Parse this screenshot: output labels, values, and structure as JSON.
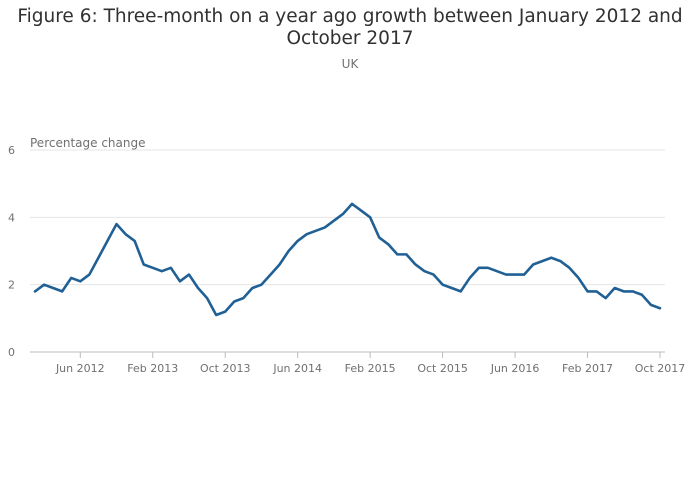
{
  "chart_data": {
    "type": "line",
    "title": "Figure 6: Three-month on a year ago growth between January 2012 and October 2017",
    "subtitle": "UK",
    "ylabel": "Percentage change",
    "xlabel": "",
    "ylim": [
      0,
      6
    ],
    "yticks": [
      "0",
      "2",
      "4",
      "6"
    ],
    "xticks": [
      {
        "label": "Jun 2012",
        "index": 5
      },
      {
        "label": "Feb 2013",
        "index": 13
      },
      {
        "label": "Oct 2013",
        "index": 21
      },
      {
        "label": "Jun 2014",
        "index": 29
      },
      {
        "label": "Feb 2015",
        "index": 37
      },
      {
        "label": "Oct 2015",
        "index": 45
      },
      {
        "label": "Jun 2016",
        "index": 53
      },
      {
        "label": "Feb 2017",
        "index": 61
      },
      {
        "label": "Oct 2017",
        "index": 69
      }
    ],
    "grid": true,
    "line_color": "#206095",
    "series": [
      {
        "values": [
          1.8,
          2.0,
          1.9,
          1.8,
          2.2,
          2.1,
          2.3,
          2.8,
          3.3,
          3.8,
          3.5,
          3.3,
          2.6,
          2.5,
          2.4,
          2.5,
          2.1,
          2.3,
          1.9,
          1.6,
          1.1,
          1.2,
          1.5,
          1.6,
          1.9,
          2.0,
          2.3,
          2.6,
          3.0,
          3.3,
          3.5,
          3.6,
          3.7,
          3.9,
          4.1,
          4.4,
          4.2,
          4.0,
          3.4,
          3.2,
          2.9,
          2.9,
          2.6,
          2.4,
          2.3,
          2.0,
          1.9,
          1.8,
          2.2,
          2.5,
          2.5,
          2.4,
          2.3,
          2.3,
          2.3,
          2.6,
          2.7,
          2.8,
          2.7,
          2.5,
          2.2,
          1.8,
          1.8,
          1.6,
          1.9,
          1.8,
          1.8,
          1.7,
          1.4,
          1.3
        ]
      }
    ]
  }
}
